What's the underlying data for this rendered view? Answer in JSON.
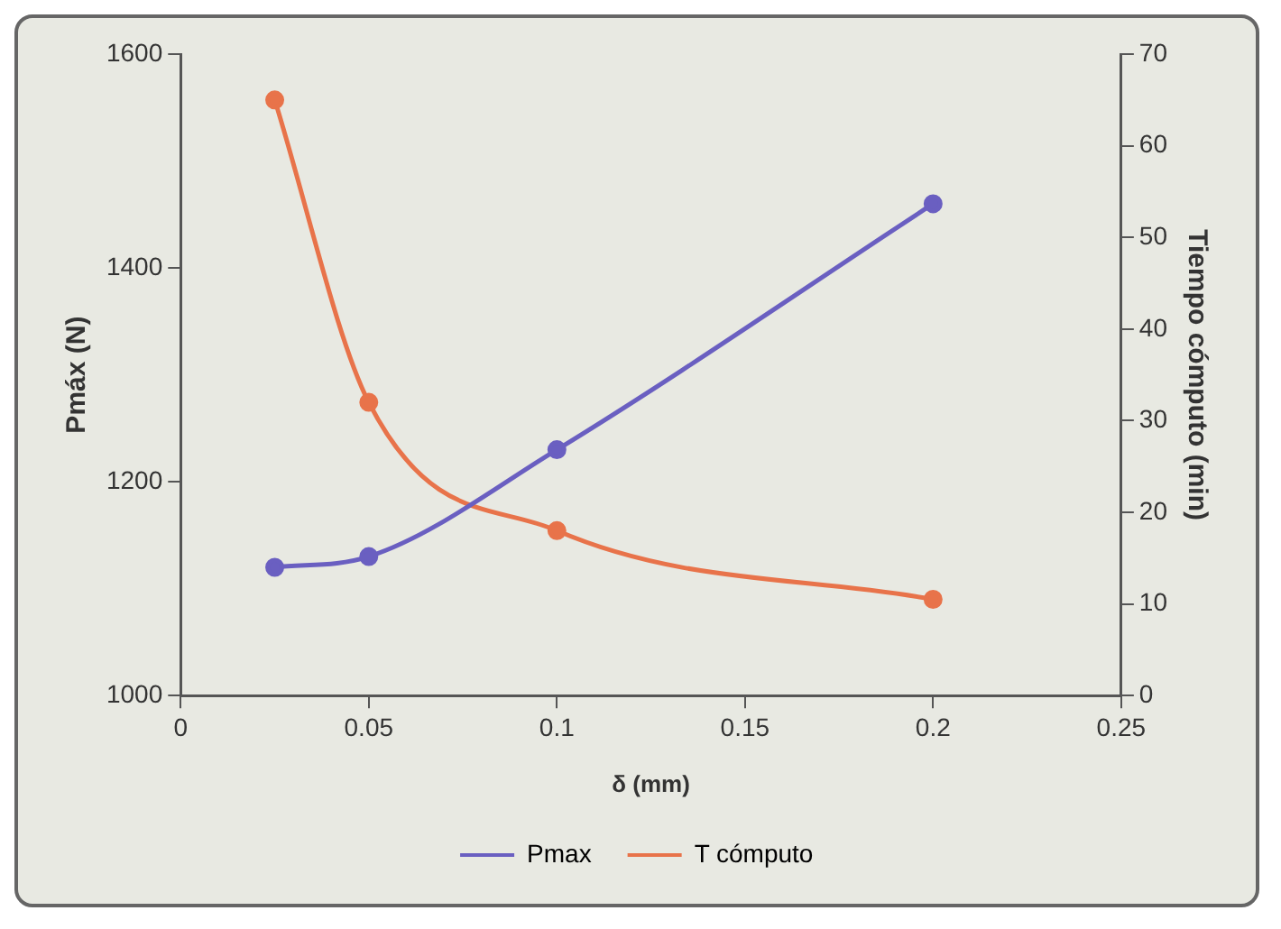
{
  "chart_data": {
    "type": "line",
    "xlabel": "δ (mm)",
    "ylabel": "Pmáx (N)",
    "y2label": "Tiempo cómputo (min)",
    "x": [
      0.025,
      0.05,
      0.1,
      0.2
    ],
    "series": [
      {
        "name": "Pmax",
        "color": "#6a5fc1",
        "values": [
          1120,
          1130,
          1230,
          1460
        ]
      },
      {
        "name": "T cómputo",
        "color": "#e8734a",
        "axis": "y2",
        "values": [
          65,
          32,
          18,
          10.5
        ]
      }
    ],
    "xlim": [
      0,
      0.25
    ],
    "xticks": [
      0,
      0.05,
      0.1,
      0.15,
      0.2,
      0.25
    ],
    "ylim": [
      1000,
      1600
    ],
    "yticks": [
      1000,
      1200,
      1400,
      1600
    ],
    "y2lim": [
      0,
      70
    ],
    "y2ticks": [
      0,
      10,
      20,
      30,
      40,
      50,
      60,
      70
    ],
    "grid": false,
    "legend": "bottom",
    "marker": "circle",
    "line_style": "solid"
  }
}
